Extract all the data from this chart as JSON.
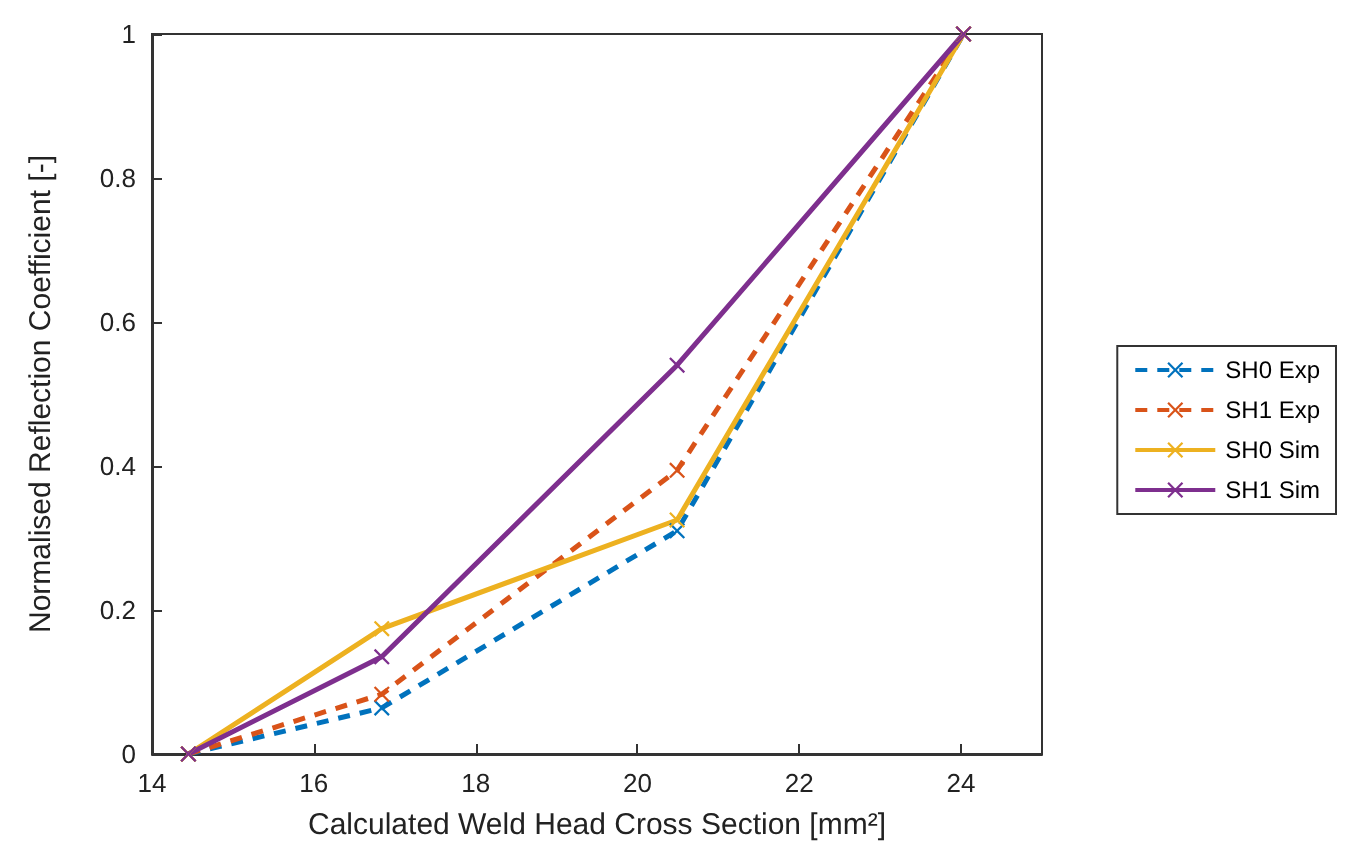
{
  "chart_data": {
    "type": "line",
    "xlabel": "Calculated Weld Head Cross Section [mm²]",
    "ylabel": "Normalised Reflection Coefficient [-]",
    "x": [
      14.45,
      16.84,
      20.49,
      24.03
    ],
    "series": [
      {
        "name": "SH0 Exp",
        "color": "#0072bd",
        "line_style": "dashed",
        "values": [
          0,
          0.064,
          0.31,
          1
        ]
      },
      {
        "name": "SH1 Exp",
        "color": "#d95319",
        "line_style": "dashed",
        "values": [
          0,
          0.083,
          0.394,
          1
        ]
      },
      {
        "name": "SH0 Sim",
        "color": "#edb120",
        "line_style": "solid",
        "values": [
          0,
          0.174,
          0.325,
          1
        ]
      },
      {
        "name": "SH1 Sim",
        "color": "#7e2f8e",
        "line_style": "solid",
        "values": [
          0,
          0.135,
          0.54,
          1
        ]
      }
    ],
    "xlim": [
      14,
      25
    ],
    "xticks": [
      14,
      16,
      18,
      20,
      22,
      24
    ],
    "ylim": [
      0,
      1
    ],
    "yticks": [
      0,
      0.2,
      0.4,
      0.6,
      0.8,
      1
    ],
    "grid": false,
    "legend": "right",
    "marker": "cross"
  }
}
